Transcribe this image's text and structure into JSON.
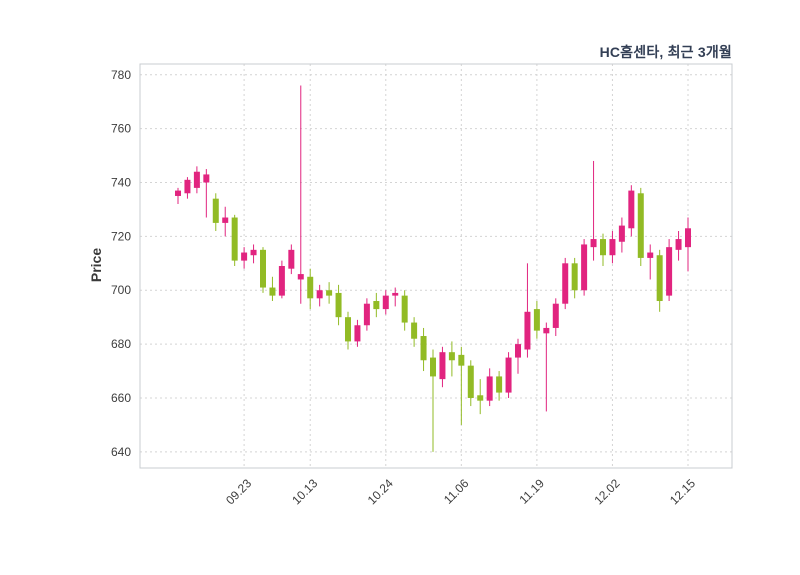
{
  "chart_data": {
    "type": "candlestick",
    "title": "HC홈센타, 최근 3개월",
    "ylabel": "Price",
    "ylim": [
      634,
      784
    ],
    "yticks": [
      640,
      660,
      680,
      700,
      720,
      740,
      760,
      780
    ],
    "xtick_labels": [
      "09.23",
      "10.13",
      "10.24",
      "11.06",
      "11.19",
      "12.02",
      "12.15"
    ],
    "xtick_indices": [
      7,
      14,
      22,
      30,
      38,
      46,
      54
    ],
    "grid": true,
    "legend": "none",
    "colors": {
      "up": "#e1247f",
      "down": "#92bb25",
      "grid": "#d4d4d4",
      "border": "#c9ccd0",
      "axis_text": "#3d3d3d",
      "title": "#333f55",
      "background": "#ffffff"
    },
    "candles_format": [
      "open",
      "high",
      "low",
      "close"
    ],
    "candles": [
      [
        735,
        738,
        732,
        737
      ],
      [
        736,
        742,
        734,
        741
      ],
      [
        738,
        746,
        736,
        744
      ],
      [
        740,
        745,
        727,
        743
      ],
      [
        734,
        736,
        722,
        725
      ],
      [
        725,
        731,
        720,
        727
      ],
      [
        727,
        728,
        709,
        711
      ],
      [
        711,
        716,
        708,
        714
      ],
      [
        713,
        717,
        710,
        715
      ],
      [
        715,
        716,
        699,
        701
      ],
      [
        701,
        705,
        696,
        698
      ],
      [
        698,
        711,
        697,
        709
      ],
      [
        708,
        717,
        706,
        715
      ],
      [
        704,
        776,
        695,
        706
      ],
      [
        705,
        708,
        693,
        697
      ],
      [
        697,
        702,
        694,
        700
      ],
      [
        700,
        703,
        695,
        698
      ],
      [
        699,
        702,
        687,
        690
      ],
      [
        690,
        692,
        678,
        681
      ],
      [
        681,
        689,
        679,
        687
      ],
      [
        687,
        697,
        685,
        695
      ],
      [
        696,
        699,
        690,
        693
      ],
      [
        693,
        700,
        691,
        698
      ],
      [
        698,
        701,
        694,
        699
      ],
      [
        698,
        700,
        685,
        688
      ],
      [
        688,
        690,
        679,
        682
      ],
      [
        683,
        686,
        670,
        674
      ],
      [
        675,
        678,
        640,
        668
      ],
      [
        667,
        679,
        664,
        677
      ],
      [
        677,
        681,
        668,
        674
      ],
      [
        676,
        679,
        650,
        672
      ],
      [
        672,
        674,
        657,
        660
      ],
      [
        661,
        667,
        654,
        659
      ],
      [
        659,
        671,
        657,
        668
      ],
      [
        668,
        670,
        659,
        662
      ],
      [
        662,
        677,
        660,
        675
      ],
      [
        675,
        682,
        669,
        680
      ],
      [
        678,
        710,
        675,
        692
      ],
      [
        693,
        696,
        682,
        685
      ],
      [
        684,
        688,
        655,
        686
      ],
      [
        686,
        697,
        683,
        695
      ],
      [
        695,
        712,
        693,
        710
      ],
      [
        710,
        712,
        697,
        700
      ],
      [
        700,
        719,
        698,
        717
      ],
      [
        716,
        748,
        711,
        719
      ],
      [
        719,
        721,
        709,
        713
      ],
      [
        713,
        722,
        710,
        719
      ],
      [
        718,
        727,
        714,
        724
      ],
      [
        723,
        739,
        720,
        737
      ],
      [
        736,
        738,
        709,
        712
      ],
      [
        712,
        717,
        704,
        714
      ],
      [
        713,
        715,
        692,
        696
      ],
      [
        698,
        719,
        696,
        716
      ],
      [
        715,
        722,
        711,
        719
      ],
      [
        716,
        727,
        707,
        723
      ]
    ]
  }
}
